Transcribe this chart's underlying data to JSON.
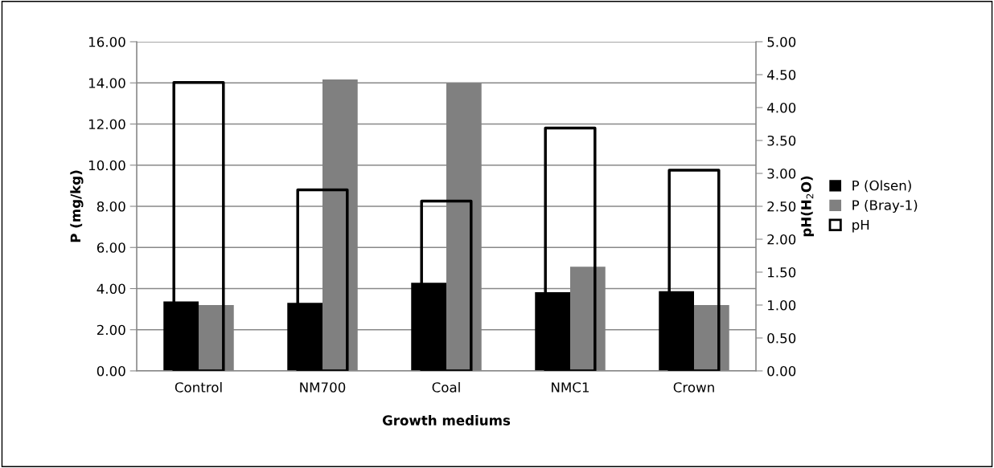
{
  "chart_data": {
    "type": "bar",
    "categories": [
      "Control",
      "NM700",
      "Coal",
      "NMC1",
      "Crown"
    ],
    "xlabel": "Growth mediums",
    "ylabel": "P (mg/kg)",
    "y2label": "pH(H$_{2}$O)",
    "series": [
      {
        "name": "P (Olsen)",
        "color": "#000000",
        "values": [
          3.38,
          3.31,
          4.28,
          3.82,
          3.87
        ]
      },
      {
        "name": "P (Bray-1)",
        "color": "#808080",
        "values": [
          3.2,
          14.17,
          14.0,
          5.06,
          3.2
        ]
      },
      {
        "name": "pH",
        "color": "#000000",
        "axis": "y2",
        "values": [
          4.38,
          2.75,
          2.58,
          3.69,
          3.05
        ]
      }
    ],
    "ylim": [
      0,
      16
    ],
    "yticks": [
      {
        "value": 0,
        "label": "0.00"
      },
      {
        "value": 2,
        "label": "2.00"
      },
      {
        "value": 4,
        "label": "4.00"
      },
      {
        "value": 6,
        "label": "6.00"
      },
      {
        "value": 8,
        "label": "8.00"
      },
      {
        "value": 10,
        "label": "10.00"
      },
      {
        "value": 12,
        "label": "12.00"
      },
      {
        "value": 14,
        "label": "14.00"
      },
      {
        "value": 16,
        "label": "16.00"
      }
    ],
    "y2lim": [
      0,
      5
    ],
    "y2ticks": [
      {
        "value": 0,
        "label": "0.00"
      },
      {
        "value": 0.5,
        "label": "0.50"
      },
      {
        "value": 1,
        "label": "1.00"
      },
      {
        "value": 1.5,
        "label": "1.50"
      },
      {
        "value": 2,
        "label": "2.00"
      },
      {
        "value": 2.5,
        "label": "2.50"
      },
      {
        "value": 3,
        "label": "3.00"
      },
      {
        "value": 3.5,
        "label": "3.50"
      },
      {
        "value": 4,
        "label": "4.00"
      },
      {
        "value": 4.5,
        "label": "4.50"
      },
      {
        "value": 5,
        "label": "5.00"
      }
    ],
    "grid": "y",
    "legend": "right"
  }
}
